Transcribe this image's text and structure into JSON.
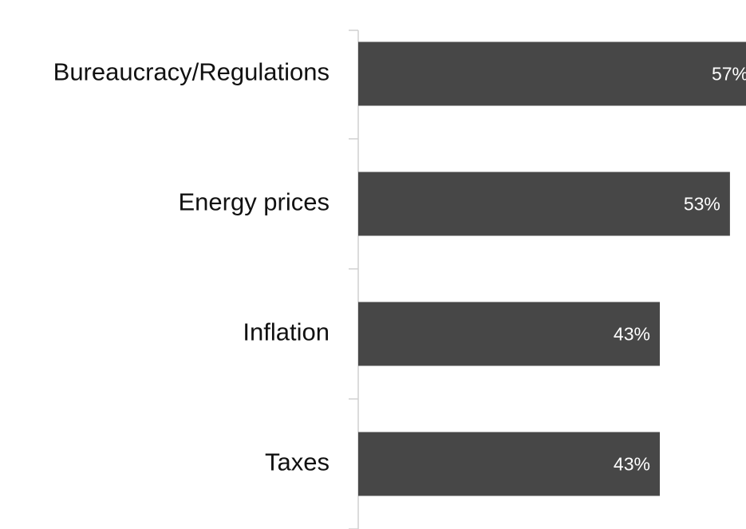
{
  "chart_data": {
    "type": "bar",
    "orientation": "horizontal",
    "categories": [
      "Bureaucracy/Regulations",
      "Energy prices",
      "Inflation",
      "Taxes"
    ],
    "values": [
      57,
      53,
      43,
      43
    ],
    "value_labels": [
      "57%",
      "53%",
      "43%",
      "43%"
    ],
    "color": "#474747"
  }
}
